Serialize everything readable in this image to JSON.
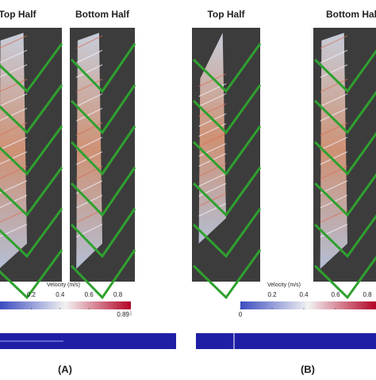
{
  "panels": [
    {
      "title": "Top Half"
    },
    {
      "title": "Bottom Half"
    },
    {
      "title": "Top Half"
    },
    {
      "title": "Bottom Half"
    }
  ],
  "colorbars": [
    {
      "label": "Velocity (m/s)",
      "ticks": [
        0.2,
        0.4,
        0.6,
        0.8
      ],
      "max": 0.89
    },
    {
      "label": "Velocity (m/s)",
      "ticks": [
        0,
        0.2,
        0.4,
        0.6,
        0.8
      ]
    }
  ],
  "captions": [
    "(A)",
    "(B)"
  ]
}
